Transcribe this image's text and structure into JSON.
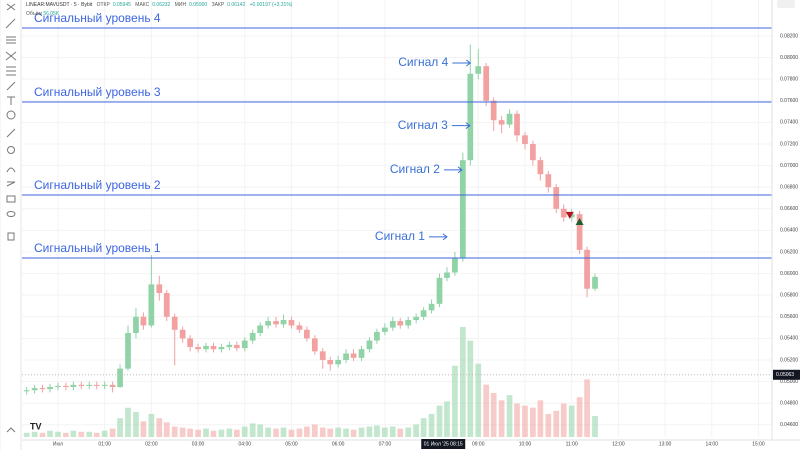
{
  "header": {
    "symbol": "LINEAR:MAVUSDT · 5 · Bybit",
    "ohlc": [
      {
        "label": "ОТКР",
        "value": "0.05945"
      },
      {
        "label": "МАКС",
        "value": "0.06232"
      },
      {
        "label": "МИН",
        "value": "0.05900"
      },
      {
        "label": "ЗАКР",
        "value": "0.06142"
      }
    ],
    "change": "+0.00197 (+3.31%)",
    "volume_label": "Объём",
    "volume_value": "56.05K"
  },
  "chart_data": {
    "type": "candlestick",
    "up_color": "#8fd3a6",
    "down_color": "#f2a0a0",
    "level_color": "#3d66e0",
    "signal_color": "#3a6fd8",
    "x": [
      -0.67,
      -0.5,
      -0.33,
      -0.17,
      0,
      0.17,
      0.33,
      0.5,
      0.67,
      0.83,
      1,
      1.17,
      1.33,
      1.5,
      1.67,
      1.83,
      2,
      2.17,
      2.33,
      2.5,
      2.67,
      2.83,
      3,
      3.17,
      3.33,
      3.5,
      3.67,
      3.83,
      4,
      4.17,
      4.33,
      4.5,
      4.67,
      4.83,
      5,
      5.17,
      5.33,
      5.5,
      5.67,
      5.83,
      6,
      6.17,
      6.33,
      6.5,
      6.67,
      6.83,
      7,
      7.17,
      7.33,
      7.5,
      7.67,
      7.83,
      8,
      8.17,
      8.33,
      8.5,
      8.67,
      8.83,
      9,
      9.17,
      9.33,
      9.5,
      9.67,
      9.83,
      10,
      10.17,
      10.33,
      10.5,
      10.67,
      10.83,
      11,
      11.17,
      11.33,
      11.5
    ],
    "open": [
      0.0491,
      0.0492,
      0.0494,
      0.0493,
      0.0495,
      0.0496,
      0.0495,
      0.0497,
      0.0496,
      0.0497,
      0.0496,
      0.0497,
      0.0495,
      0.0512,
      0.0545,
      0.056,
      0.0552,
      0.059,
      0.0582,
      0.056,
      0.0548,
      0.054,
      0.0532,
      0.053,
      0.0533,
      0.053,
      0.0532,
      0.0534,
      0.0531,
      0.0538,
      0.0545,
      0.0552,
      0.0556,
      0.0553,
      0.0557,
      0.0552,
      0.0548,
      0.054,
      0.0528,
      0.052,
      0.0516,
      0.052,
      0.0526,
      0.0522,
      0.053,
      0.0538,
      0.0546,
      0.055,
      0.0556,
      0.0552,
      0.0557,
      0.056,
      0.0566,
      0.0572,
      0.0596,
      0.0601,
      0.0614,
      0.0705,
      0.0785,
      0.0792,
      0.076,
      0.0742,
      0.0738,
      0.0748,
      0.0728,
      0.072,
      0.0705,
      0.0692,
      0.068,
      0.066,
      0.0652,
      0.0655,
      0.0622,
      0.0586
    ],
    "high": [
      0.0495,
      0.0497,
      0.0497,
      0.0498,
      0.0499,
      0.0499,
      0.05,
      0.05,
      0.05,
      0.05,
      0.05,
      0.05,
      0.0516,
      0.0552,
      0.0568,
      0.0564,
      0.0617,
      0.0598,
      0.0585,
      0.0563,
      0.0551,
      0.0543,
      0.0535,
      0.0536,
      0.0536,
      0.0535,
      0.0537,
      0.0537,
      0.0541,
      0.0548,
      0.0555,
      0.056,
      0.056,
      0.0562,
      0.056,
      0.0555,
      0.0551,
      0.0543,
      0.0531,
      0.0523,
      0.0524,
      0.053,
      0.053,
      0.0533,
      0.0541,
      0.0549,
      0.0554,
      0.056,
      0.0559,
      0.056,
      0.0563,
      0.0569,
      0.0576,
      0.06,
      0.0606,
      0.062,
      0.0712,
      0.0812,
      0.0808,
      0.0795,
      0.0763,
      0.0746,
      0.0752,
      0.0751,
      0.0731,
      0.0723,
      0.0708,
      0.0695,
      0.0683,
      0.0664,
      0.066,
      0.0658,
      0.0625,
      0.06
    ],
    "low": [
      0.0488,
      0.0489,
      0.049,
      0.049,
      0.0492,
      0.0492,
      0.0492,
      0.0493,
      0.0493,
      0.0493,
      0.0493,
      0.049,
      0.0494,
      0.051,
      0.054,
      0.0548,
      0.055,
      0.0575,
      0.0556,
      0.0515,
      0.0536,
      0.0528,
      0.0527,
      0.0527,
      0.0527,
      0.0527,
      0.0529,
      0.0528,
      0.0528,
      0.0535,
      0.0542,
      0.0549,
      0.055,
      0.055,
      0.0549,
      0.0545,
      0.0537,
      0.0525,
      0.0512,
      0.051,
      0.0513,
      0.0517,
      0.0519,
      0.0519,
      0.0527,
      0.0535,
      0.0543,
      0.0547,
      0.0549,
      0.0549,
      0.0554,
      0.0557,
      0.0563,
      0.0569,
      0.0593,
      0.0598,
      0.0611,
      0.07,
      0.078,
      0.0755,
      0.0732,
      0.073,
      0.0735,
      0.0722,
      0.0715,
      0.07,
      0.0686,
      0.0675,
      0.0656,
      0.0648,
      0.0648,
      0.0618,
      0.0578,
      0.0584
    ],
    "close": [
      0.0492,
      0.0494,
      0.0493,
      0.0495,
      0.0496,
      0.0495,
      0.0497,
      0.0496,
      0.0497,
      0.0496,
      0.0497,
      0.0495,
      0.0512,
      0.0545,
      0.056,
      0.0552,
      0.059,
      0.0582,
      0.056,
      0.0548,
      0.054,
      0.0532,
      0.053,
      0.0533,
      0.053,
      0.0532,
      0.0534,
      0.0531,
      0.0538,
      0.0545,
      0.0552,
      0.0556,
      0.0553,
      0.0557,
      0.0552,
      0.0548,
      0.054,
      0.0528,
      0.052,
      0.0516,
      0.052,
      0.0526,
      0.0522,
      0.053,
      0.0538,
      0.0546,
      0.055,
      0.0556,
      0.0552,
      0.0557,
      0.056,
      0.0566,
      0.0572,
      0.0596,
      0.0601,
      0.0614,
      0.0705,
      0.0785,
      0.0792,
      0.076,
      0.0742,
      0.0738,
      0.0748,
      0.0728,
      0.072,
      0.0705,
      0.0692,
      0.068,
      0.066,
      0.0652,
      0.0655,
      0.0622,
      0.0586,
      0.0597
    ],
    "volume": [
      4,
      5,
      4,
      6,
      5,
      4,
      6,
      5,
      5,
      4,
      6,
      8,
      18,
      28,
      24,
      15,
      22,
      18,
      14,
      10,
      9,
      8,
      7,
      8,
      6,
      7,
      8,
      7,
      10,
      13,
      12,
      9,
      8,
      9,
      7,
      8,
      10,
      12,
      9,
      8,
      9,
      8,
      7,
      9,
      10,
      11,
      9,
      10,
      8,
      9,
      12,
      18,
      22,
      30,
      34,
      68,
      105,
      92,
      70,
      50,
      42,
      35,
      40,
      32,
      30,
      28,
      35,
      22,
      25,
      32,
      30,
      38,
      55,
      20
    ],
    "xlim": [
      -0.77,
      15.29
    ],
    "ylim": [
      0.04487,
      0.08533
    ],
    "xticks": [
      {
        "value": 0,
        "label": "Июл"
      },
      {
        "value": 1,
        "label": "01:00"
      },
      {
        "value": 2,
        "label": "02:00"
      },
      {
        "value": 3,
        "label": "03:00"
      },
      {
        "value": 4,
        "label": "04:00"
      },
      {
        "value": 5,
        "label": "05:00"
      },
      {
        "value": 6,
        "label": "06:00"
      },
      {
        "value": 7,
        "label": "07:00"
      },
      {
        "value": 9,
        "label": "09:00"
      },
      {
        "value": 10,
        "label": "10:00"
      },
      {
        "value": 11,
        "label": "11:00"
      },
      {
        "value": 12,
        "label": "12:00"
      },
      {
        "value": 13,
        "label": "13:00"
      },
      {
        "value": 14,
        "label": "14:00"
      },
      {
        "value": 15,
        "label": "15:00"
      }
    ],
    "yticks": [
      {
        "value": 0.046,
        "label": "0.04600"
      },
      {
        "value": 0.048,
        "label": "0.04800"
      },
      {
        "value": 0.05,
        "label": "0.05000"
      },
      {
        "value": 0.052,
        "label": "0.05200"
      },
      {
        "value": 0.054,
        "label": "0.05400"
      },
      {
        "value": 0.056,
        "label": "0.05600"
      },
      {
        "value": 0.058,
        "label": "0.05800"
      },
      {
        "value": 0.06,
        "label": "0.06000"
      },
      {
        "value": 0.062,
        "label": "0.06200"
      },
      {
        "value": 0.064,
        "label": "0.06400"
      },
      {
        "value": 0.066,
        "label": "0.06600"
      },
      {
        "value": 0.068,
        "label": "0.06800"
      },
      {
        "value": 0.07,
        "label": "0.07000"
      },
      {
        "value": 0.072,
        "label": "0.07200"
      },
      {
        "value": 0.074,
        "label": "0.07400"
      },
      {
        "value": 0.076,
        "label": "0.07600"
      },
      {
        "value": 0.078,
        "label": "0.07800"
      },
      {
        "value": 0.08,
        "label": "0.08000"
      },
      {
        "value": 0.082,
        "label": "0.08200"
      }
    ],
    "grid": true,
    "crosshair_time": {
      "value": 8.25,
      "label": "01 Июл '25   08:15"
    },
    "price_label": {
      "value": 0.05063,
      "label": "0.05063"
    },
    "levels": [
      {
        "label": "Сигнальный уровень 4",
        "value": 0.08274
      },
      {
        "label": "Сигнальный уровень 3",
        "value": 0.07589
      },
      {
        "label": "Сигнальный уровень 2",
        "value": 0.06728
      },
      {
        "label": "Сигнальный уровень 1",
        "value": 0.06144
      }
    ],
    "signals": [
      {
        "label": "Сигнал 4",
        "x": 8.83,
        "y": 0.0795
      },
      {
        "label": "Сигнал 3",
        "x": 8.82,
        "y": 0.0737
      },
      {
        "label": "Сигнал 2",
        "x": 8.65,
        "y": 0.0696
      },
      {
        "label": "Сигнал 1",
        "x": 8.33,
        "y": 0.0634
      }
    ],
    "markers": [
      {
        "kind": "sell",
        "x": 10.96,
        "y": 0.06543,
        "color": "#b0161e"
      },
      {
        "kind": "buy",
        "x": 11.17,
        "y": 0.06478,
        "color": "#1f5e33"
      }
    ]
  }
}
